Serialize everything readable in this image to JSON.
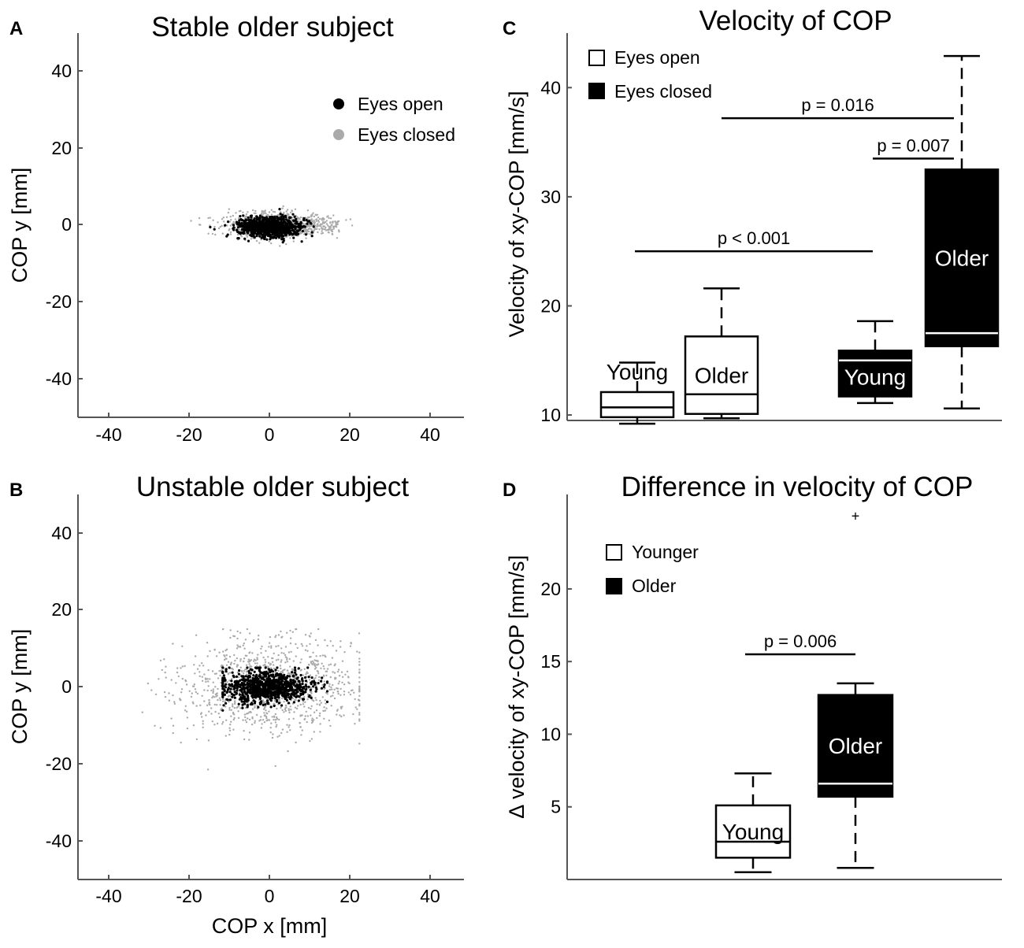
{
  "chart_data": [
    {
      "panel": "A",
      "type": "scatter",
      "title": "Stable older subject",
      "xlabel": "",
      "ylabel": "COP y [mm]",
      "xlim": [
        -48,
        48
      ],
      "ylim": [
        -50,
        50
      ],
      "xticks": [
        -40,
        -20,
        0,
        20,
        40
      ],
      "yticks": [
        -40,
        -20,
        0,
        20,
        40
      ],
      "legend": {
        "position": "top-right",
        "entries": [
          {
            "label": "Eyes open",
            "color": "#000000"
          },
          {
            "label": "Eyes closed",
            "color": "#aaaaaa"
          }
        ]
      },
      "series": [
        {
          "name": "Eyes closed",
          "color": "#aaaaaa",
          "center": [
            1,
            0
          ],
          "spread": [
            6,
            1.6
          ],
          "tail_to_x": 17
        },
        {
          "name": "Eyes open",
          "color": "#000000",
          "center": [
            -1,
            -0.5
          ],
          "spread": [
            4,
            1.3
          ]
        }
      ]
    },
    {
      "panel": "B",
      "type": "scatter",
      "title": "Unstable older subject",
      "xlabel": "COP x [mm]",
      "ylabel": "COP y [mm]",
      "xlim": [
        -48,
        48
      ],
      "ylim": [
        -50,
        50
      ],
      "xticks": [
        -40,
        -20,
        0,
        20,
        40
      ],
      "yticks": [
        -40,
        -20,
        0,
        20,
        40
      ],
      "series": [
        {
          "name": "Eyes closed",
          "color": "#aaaaaa",
          "center": [
            0,
            0
          ],
          "spread": [
            11,
            6.5
          ],
          "range_x": [
            -38,
            22
          ],
          "range_y": [
            -22,
            15
          ]
        },
        {
          "name": "Eyes open",
          "color": "#000000",
          "center": [
            -1,
            0
          ],
          "spread": [
            5.5,
            2
          ],
          "range_x": [
            -12,
            14
          ],
          "range_y": [
            -7,
            5
          ]
        }
      ]
    },
    {
      "panel": "C",
      "type": "box",
      "title": "Velocity of COP",
      "xlabel": "",
      "ylabel": "Velocity of xy-COP [mm/s]",
      "ylim": [
        9.5,
        45
      ],
      "yticks": [
        10,
        20,
        30,
        40
      ],
      "legend": {
        "position": "top-left",
        "entries": [
          {
            "label": "Eyes open",
            "color": "#ffffff"
          },
          {
            "label": "Eyes closed",
            "color": "#000000"
          }
        ]
      },
      "boxes": [
        {
          "label": "Young",
          "condition": "Eyes open",
          "fill": "#ffffff",
          "whisker_low": 9.2,
          "q1": 9.8,
          "median": 10.7,
          "q3": 12.1,
          "whisker_high": 14.8
        },
        {
          "label": "Older",
          "condition": "Eyes open",
          "fill": "#ffffff",
          "whisker_low": 9.7,
          "q1": 10.1,
          "median": 11.9,
          "q3": 17.2,
          "whisker_high": 21.6
        },
        {
          "label": "Young",
          "condition": "Eyes closed",
          "fill": "#000000",
          "whisker_low": 11.1,
          "q1": 11.7,
          "median": 15.0,
          "q3": 15.9,
          "whisker_high": 18.6
        },
        {
          "label": "Older",
          "condition": "Eyes closed",
          "fill": "#000000",
          "whisker_low": 10.6,
          "q1": 16.3,
          "median": 17.5,
          "q3": 32.5,
          "whisker_high": 42.9
        }
      ],
      "annotations": [
        {
          "text": "p = 0.016",
          "from": 1,
          "to": 3,
          "y": 37.2
        },
        {
          "text": "p = 0.007",
          "from": 2,
          "to": 3,
          "y": 33.5
        },
        {
          "text": "p < 0.001",
          "from": 0,
          "to": 2,
          "y": 25.0
        }
      ]
    },
    {
      "panel": "D",
      "type": "box",
      "title": "Difference in velocity of COP",
      "xlabel": "",
      "ylabel": "∆ velocity of xy-COP [mm/s]",
      "ylim": [
        0,
        26.5
      ],
      "yticks": [
        5,
        10,
        15,
        20
      ],
      "legend": {
        "position": "top-left",
        "entries": [
          {
            "label": "Younger",
            "color": "#ffffff"
          },
          {
            "label": "Older",
            "color": "#000000"
          }
        ]
      },
      "boxes": [
        {
          "label": "Young",
          "fill": "#ffffff",
          "whisker_low": 0.5,
          "q1": 1.5,
          "median": 2.6,
          "q3": 5.1,
          "whisker_high": 7.3
        },
        {
          "label": "Older",
          "fill": "#000000",
          "whisker_low": 0.8,
          "q1": 5.7,
          "median": 6.6,
          "q3": 12.7,
          "whisker_high": 13.5,
          "outliers": [
            25.0
          ]
        }
      ],
      "annotations": [
        {
          "text": "p = 0.006",
          "from": 0,
          "to": 1,
          "y": 15.5
        }
      ]
    }
  ]
}
